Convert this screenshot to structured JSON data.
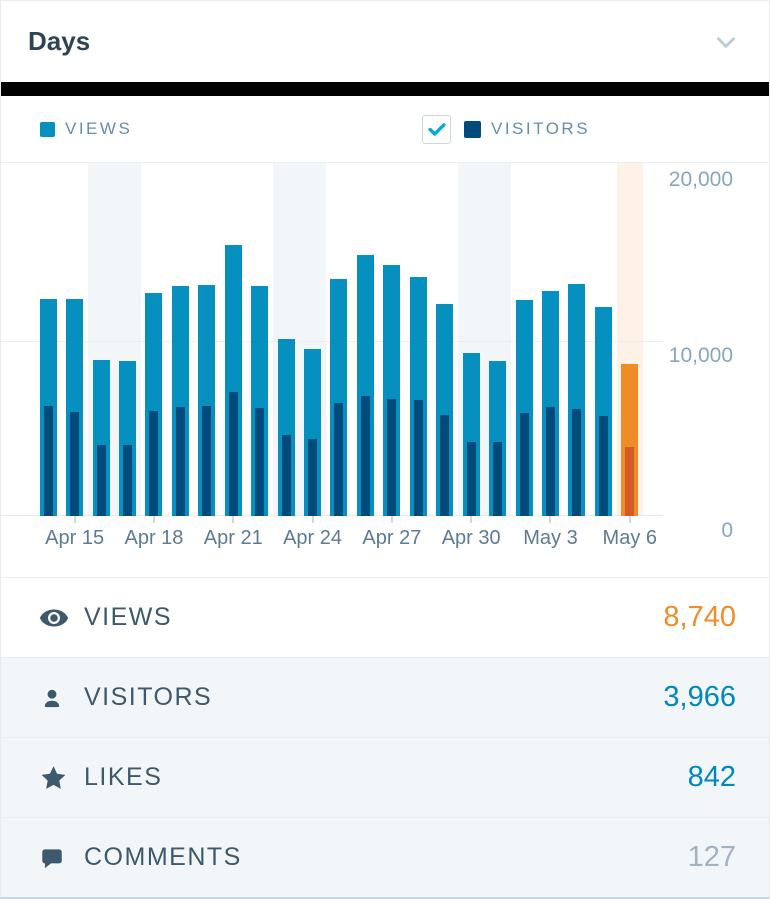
{
  "header": {
    "title": "Days"
  },
  "legend": {
    "views_label": "VIEWS",
    "visitors_label": "VISITORS",
    "visitors_checked": true
  },
  "colors": {
    "views": "#0590c0",
    "visitors": "#004b7b",
    "views_selected": "#f08c28",
    "visitors_selected": "#d55a28",
    "weekend_bg": "#f3f6f8",
    "selected_bg": "#fef1e6"
  },
  "icons": {
    "header_toggle": "chevron-down-icon",
    "visitors_checkbox": "checkmark-icon",
    "views_row": "eye-icon",
    "visitors_row": "user-icon",
    "likes_row": "star-icon",
    "comments_row": "comment-bubble-icon"
  },
  "chart_data": {
    "type": "bar",
    "categories": [
      "Apr 14",
      "Apr 15",
      "Apr 16",
      "Apr 17",
      "Apr 18",
      "Apr 19",
      "Apr 20",
      "Apr 21",
      "Apr 22",
      "Apr 23",
      "Apr 24",
      "Apr 25",
      "Apr 26",
      "Apr 27",
      "Apr 28",
      "Apr 29",
      "Apr 30",
      "May 1",
      "May 2",
      "May 3",
      "May 4",
      "May 5",
      "May 6"
    ],
    "series": [
      {
        "name": "Views",
        "values": [
          12500,
          12450,
          8950,
          8900,
          12800,
          13200,
          13250,
          15600,
          13200,
          10150,
          9600,
          13600,
          15000,
          14400,
          13750,
          12200,
          9350,
          8900,
          12400,
          12950,
          13350,
          12000,
          8740
        ]
      },
      {
        "name": "Visitors",
        "values": [
          6300,
          6000,
          4100,
          4080,
          6050,
          6280,
          6340,
          7150,
          6190,
          4650,
          4400,
          6480,
          6920,
          6700,
          6670,
          5800,
          4270,
          4240,
          5940,
          6280,
          6150,
          5750,
          3966
        ]
      }
    ],
    "ylim": [
      0,
      20000
    ],
    "y_ticks": [
      "20,000",
      "10,000",
      "0"
    ],
    "x_tick_labels": [
      "Apr 15",
      "Apr 18",
      "Apr 21",
      "Apr 24",
      "Apr 27",
      "Apr 30",
      "May 3",
      "May 6"
    ],
    "x_tick_indices": [
      1,
      4,
      7,
      10,
      13,
      16,
      19,
      22
    ],
    "weekend_indices": [
      2,
      3,
      9,
      10,
      16,
      17
    ],
    "selected_index": 22,
    "grid": true,
    "legend_position": "top",
    "yaxis_side": "right"
  },
  "summary": {
    "rows": [
      {
        "label": "VIEWS",
        "value": "8,740",
        "icon": "eye-icon",
        "value_color": "#f08c28",
        "selected": true
      },
      {
        "label": "VISITORS",
        "value": "3,966",
        "icon": "user-icon",
        "value_color": "#0087be",
        "selected": false
      },
      {
        "label": "LIKES",
        "value": "842",
        "icon": "star-icon",
        "value_color": "#0087be",
        "selected": false
      },
      {
        "label": "COMMENTS",
        "value": "127",
        "icon": "comment-bubble-icon",
        "value_color": "#a0b2c3",
        "selected": false
      }
    ]
  }
}
